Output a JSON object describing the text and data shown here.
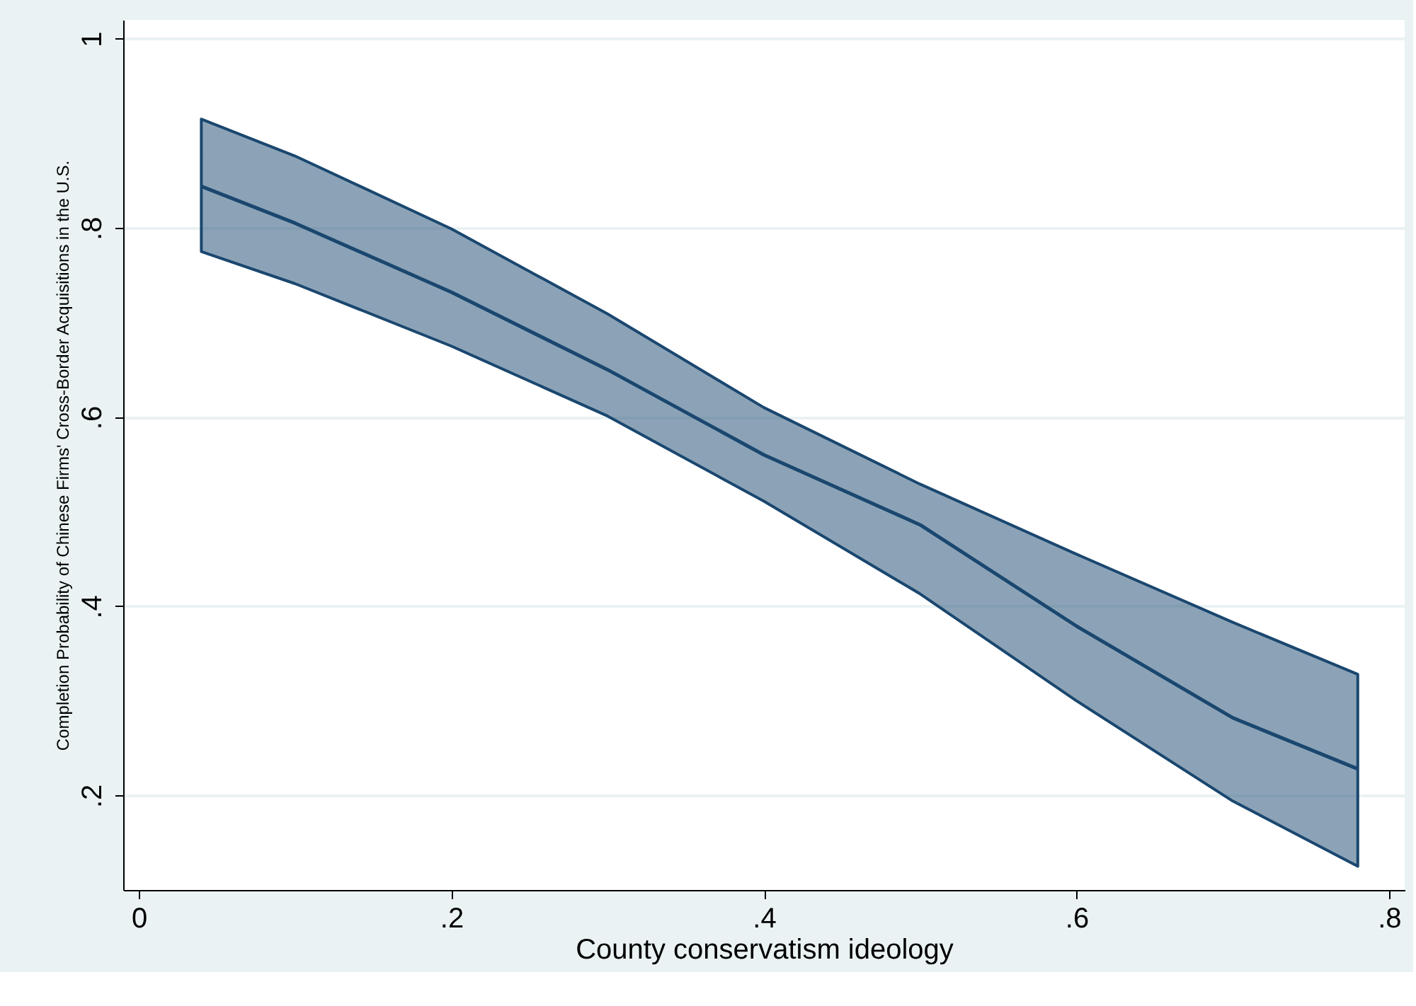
{
  "chart_data": {
    "type": "line",
    "xlabel": "County conservatism ideology",
    "ylabel": "Completion Probability of Chinese Firms' Cross-Border Acquisitions in the U.S.",
    "x": [
      0.04,
      0.1,
      0.2,
      0.3,
      0.4,
      0.5,
      0.6,
      0.7,
      0.78
    ],
    "series": [
      {
        "color": "#1a476f",
        "values": [
          0.844,
          0.805,
          0.732,
          0.65,
          0.56,
          0.486,
          0.379,
          0.282,
          0.228
        ],
        "lower": [
          0.775,
          0.741,
          0.675,
          0.601,
          0.511,
          0.413,
          0.3,
          0.194,
          0.125
        ],
        "upper": [
          0.915,
          0.876,
          0.799,
          0.709,
          0.61,
          0.529,
          0.455,
          0.383,
          0.328
        ]
      }
    ],
    "xlim": [
      -0.01,
      0.81
    ],
    "ylim": [
      0.1,
      1.02
    ],
    "xticks": [
      0,
      {
        "value": 0.2,
        "label": ".2"
      },
      {
        "value": 0.4,
        "label": ".4"
      },
      {
        "value": 0.6,
        "label": ".6"
      },
      {
        "value": 0.8,
        "label": ".8"
      }
    ],
    "yticks": [
      {
        "value": 0.2,
        "label": ".2"
      },
      {
        "value": 0.4,
        "label": ".4"
      },
      {
        "value": 0.6,
        "label": ".6"
      },
      {
        "value": 0.8,
        "label": ".8"
      },
      1
    ],
    "grid": "y",
    "marker": "none",
    "line_style": "solid"
  }
}
